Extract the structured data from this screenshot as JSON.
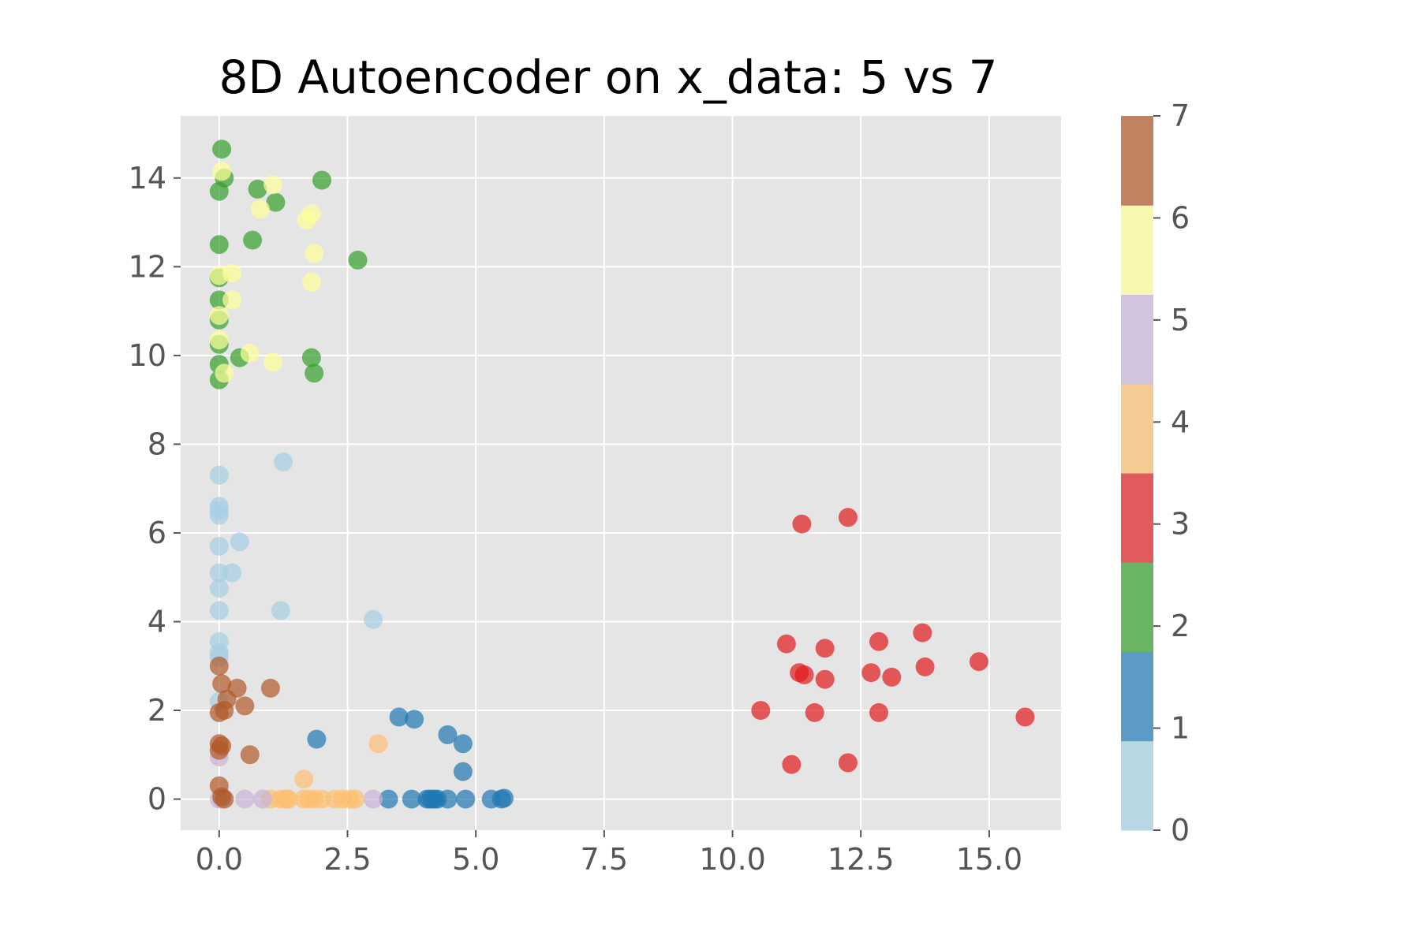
{
  "chart_data": {
    "type": "scatter",
    "title": "8D Autoencoder on x_data: 5 vs 7",
    "xlabel": "",
    "ylabel": "",
    "xlim": [
      -0.75,
      16.4
    ],
    "ylim": [
      -0.7,
      15.4
    ],
    "x_ticks": [
      0.0,
      2.5,
      5.0,
      7.5,
      10.0,
      12.5,
      15.0
    ],
    "x_tick_labels": [
      "0.0",
      "2.5",
      "5.0",
      "7.5",
      "10.0",
      "12.5",
      "15.0"
    ],
    "y_ticks": [
      0,
      2,
      4,
      6,
      8,
      10,
      12,
      14
    ],
    "y_tick_labels": [
      "0",
      "2",
      "4",
      "6",
      "8",
      "10",
      "12",
      "14"
    ],
    "grid": true,
    "background": "#e5e5e5",
    "colorbar": {
      "colormap": "Paired",
      "ticks": [
        0,
        1,
        2,
        3,
        4,
        5,
        6,
        7
      ],
      "tick_labels": [
        "0",
        "1",
        "2",
        "3",
        "4",
        "5",
        "6",
        "7"
      ],
      "colors": [
        "#b9d6e3",
        "#5d9bc7",
        "#6ab563",
        "#e15b5e",
        "#f4cb93",
        "#d2c4de",
        "#f8f7b0",
        "#c08260"
      ]
    },
    "series": [
      {
        "label": 0,
        "color": "#a6cee3",
        "points": [
          [
            0.0,
            7.3
          ],
          [
            1.25,
            7.6
          ],
          [
            0.0,
            6.6
          ],
          [
            0.0,
            6.5
          ],
          [
            0.0,
            6.4
          ],
          [
            0.0,
            5.7
          ],
          [
            0.4,
            5.8
          ],
          [
            0.0,
            5.1
          ],
          [
            0.25,
            5.1
          ],
          [
            0.0,
            4.75
          ],
          [
            0.0,
            4.25
          ],
          [
            1.2,
            4.25
          ],
          [
            3.0,
            4.05
          ],
          [
            0.0,
            3.55
          ],
          [
            0.0,
            3.3
          ],
          [
            0.0,
            3.2
          ],
          [
            0.0,
            2.2
          ]
        ]
      },
      {
        "label": 1,
        "color": "#1f78b4",
        "points": [
          [
            1.9,
            1.35
          ],
          [
            3.5,
            1.85
          ],
          [
            3.8,
            1.8
          ],
          [
            4.45,
            1.45
          ],
          [
            4.75,
            1.25
          ],
          [
            4.75,
            0.62
          ],
          [
            3.3,
            0.0
          ],
          [
            3.75,
            0.0
          ],
          [
            4.05,
            0.0
          ],
          [
            4.1,
            0.0
          ],
          [
            4.15,
            0.0
          ],
          [
            4.2,
            0.0
          ],
          [
            4.25,
            0.0
          ],
          [
            4.45,
            0.0
          ],
          [
            4.8,
            0.0
          ],
          [
            5.3,
            0.0
          ],
          [
            5.5,
            0.0
          ],
          [
            5.55,
            0.02
          ]
        ]
      },
      {
        "label": 2,
        "color": "#33a02c",
        "points": [
          [
            0.05,
            14.65
          ],
          [
            0.1,
            14.0
          ],
          [
            0.0,
            13.7
          ],
          [
            0.75,
            13.75
          ],
          [
            1.1,
            13.45
          ],
          [
            2.0,
            13.95
          ],
          [
            0.0,
            12.5
          ],
          [
            0.65,
            12.6
          ],
          [
            2.7,
            12.15
          ],
          [
            0.0,
            11.75
          ],
          [
            0.0,
            11.25
          ],
          [
            0.0,
            10.8
          ],
          [
            0.0,
            10.25
          ],
          [
            0.4,
            9.95
          ],
          [
            0.0,
            9.8
          ],
          [
            1.8,
            9.95
          ],
          [
            1.85,
            9.6
          ],
          [
            0.0,
            9.45
          ]
        ]
      },
      {
        "label": 3,
        "color": "#e31a1c",
        "points": [
          [
            11.35,
            6.2
          ],
          [
            12.25,
            6.35
          ],
          [
            11.05,
            3.5
          ],
          [
            11.8,
            3.4
          ],
          [
            12.85,
            3.55
          ],
          [
            13.7,
            3.75
          ],
          [
            11.3,
            2.85
          ],
          [
            11.4,
            2.8
          ],
          [
            11.8,
            2.7
          ],
          [
            12.7,
            2.85
          ],
          [
            13.1,
            2.75
          ],
          [
            13.75,
            2.98
          ],
          [
            14.8,
            3.1
          ],
          [
            10.55,
            2.0
          ],
          [
            11.6,
            1.95
          ],
          [
            12.85,
            1.95
          ],
          [
            15.7,
            1.85
          ],
          [
            11.15,
            0.78
          ],
          [
            12.25,
            0.82
          ]
        ]
      },
      {
        "label": 4,
        "color": "#fdbf6f",
        "points": [
          [
            3.1,
            1.25
          ],
          [
            1.65,
            0.45
          ],
          [
            1.0,
            0.0
          ],
          [
            1.2,
            0.0
          ],
          [
            1.3,
            0.0
          ],
          [
            1.35,
            0.0
          ],
          [
            1.65,
            0.0
          ],
          [
            1.75,
            0.0
          ],
          [
            1.85,
            0.0
          ],
          [
            2.0,
            0.0
          ],
          [
            2.25,
            0.0
          ],
          [
            2.4,
            0.0
          ],
          [
            2.55,
            0.0
          ],
          [
            2.65,
            0.0
          ]
        ]
      },
      {
        "label": 5,
        "color": "#cab2d6",
        "points": [
          [
            0.0,
            0.95
          ],
          [
            0.0,
            0.0
          ],
          [
            0.05,
            0.0
          ],
          [
            0.5,
            0.0
          ],
          [
            0.85,
            0.0
          ],
          [
            3.0,
            0.0
          ]
        ]
      },
      {
        "label": 6,
        "color": "#ffff99",
        "points": [
          [
            0.05,
            14.15
          ],
          [
            1.05,
            13.85
          ],
          [
            0.8,
            13.3
          ],
          [
            1.7,
            13.05
          ],
          [
            1.8,
            13.2
          ],
          [
            1.85,
            12.3
          ],
          [
            0.25,
            11.85
          ],
          [
            0.0,
            11.8
          ],
          [
            0.25,
            11.25
          ],
          [
            1.8,
            11.65
          ],
          [
            0.0,
            10.9
          ],
          [
            0.0,
            10.35
          ],
          [
            0.6,
            10.05
          ],
          [
            1.05,
            9.85
          ],
          [
            0.1,
            9.6
          ]
        ]
      },
      {
        "label": 7,
        "color": "#b15928",
        "points": [
          [
            0.0,
            3.0
          ],
          [
            0.05,
            2.6
          ],
          [
            0.35,
            2.5
          ],
          [
            1.0,
            2.5
          ],
          [
            0.15,
            2.25
          ],
          [
            0.5,
            2.1
          ],
          [
            0.0,
            1.95
          ],
          [
            0.1,
            2.0
          ],
          [
            0.0,
            1.25
          ],
          [
            0.05,
            1.2
          ],
          [
            0.0,
            1.1
          ],
          [
            0.6,
            1.0
          ],
          [
            0.0,
            0.3
          ],
          [
            0.05,
            0.05
          ],
          [
            0.1,
            0.0
          ]
        ]
      }
    ]
  }
}
